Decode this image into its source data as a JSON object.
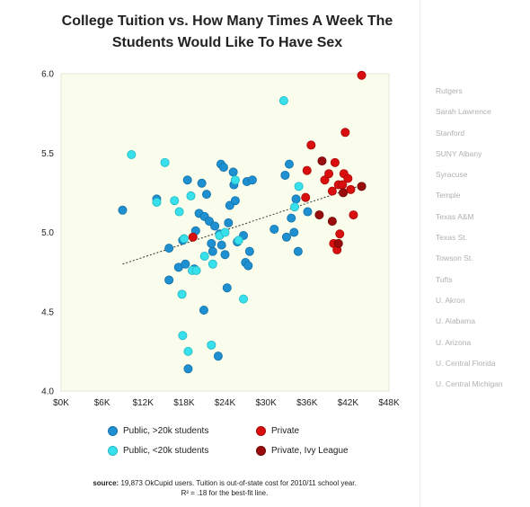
{
  "title_line1": "College Tuition vs. How Many Times A Week The",
  "title_line2": "Students Would Like To Have Sex",
  "schools": [
    "Rutgers",
    "Sarah Lawrence",
    "Stanford",
    "SUNY Albany",
    "Syracuse",
    "Temple",
    "Texas A&M",
    "Texas St.",
    "Towson St.",
    "Tufts",
    "U. Akron",
    "U. Alabama",
    "U. Arizona",
    "U. Central Florida",
    "U. Central Michigan"
  ],
  "legend": {
    "public_large": "Public, >20k students",
    "public_small": "Public, <20k students",
    "private": "Private",
    "private_ivy": "Private, Ivy League"
  },
  "source_label": "source:",
  "source_text": " 19,873 OkCupid users. Tuition is out-of-state cost for 2010/11 school year.",
  "r2_text": "R² = .18 for the best-fit line.",
  "colors": {
    "public_large": "#1e8fd0",
    "public_small": "#38e0ec",
    "private": "#d90e0e",
    "private_ivy": "#9a0c0c",
    "plot_bg": "#fafdeb",
    "trend": "#333333"
  },
  "chart_data": {
    "type": "scatter",
    "title": "College Tuition vs. How Many Times A Week The Students Would Like To Have Sex",
    "xlabel": "",
    "ylabel": "",
    "xlim": [
      0,
      48000
    ],
    "ylim": [
      4.0,
      6.0
    ],
    "x_ticks": [
      0,
      6000,
      12000,
      18000,
      24000,
      30000,
      36000,
      42000,
      48000
    ],
    "x_tick_labels": [
      "$0K",
      "$6K",
      "$12K",
      "$18K",
      "$24K",
      "$30K",
      "$36K",
      "$42K",
      "$48K"
    ],
    "y_ticks": [
      4.0,
      4.5,
      5.0,
      5.5,
      6.0
    ],
    "y_tick_labels": [
      "4.0",
      "4.5",
      "5.0",
      "5.5",
      "6.0"
    ],
    "grid": false,
    "trendline": {
      "x": [
        9000,
        43500
      ],
      "y": [
        4.8,
        5.29
      ]
    },
    "series": [
      {
        "name": "Public, >20k students",
        "color": "#1e8fd0",
        "points": [
          [
            9000,
            5.14
          ],
          [
            14000,
            5.21
          ],
          [
            15800,
            4.9
          ],
          [
            15800,
            4.7
          ],
          [
            17200,
            4.78
          ],
          [
            17800,
            4.95
          ],
          [
            18200,
            4.8
          ],
          [
            18500,
            5.33
          ],
          [
            18600,
            4.14
          ],
          [
            19500,
            4.77
          ],
          [
            19700,
            5.01
          ],
          [
            20200,
            5.12
          ],
          [
            20600,
            5.31
          ],
          [
            20900,
            4.51
          ],
          [
            21000,
            5.1
          ],
          [
            21300,
            5.24
          ],
          [
            21700,
            5.07
          ],
          [
            22000,
            4.93
          ],
          [
            22200,
            4.88
          ],
          [
            22500,
            5.04
          ],
          [
            23000,
            4.22
          ],
          [
            23200,
            4.99
          ],
          [
            23400,
            5.43
          ],
          [
            23500,
            4.92
          ],
          [
            23800,
            5.41
          ],
          [
            24000,
            4.86
          ],
          [
            24300,
            4.65
          ],
          [
            24500,
            5.06
          ],
          [
            24700,
            5.17
          ],
          [
            25200,
            5.38
          ],
          [
            25300,
            5.3
          ],
          [
            25500,
            5.2
          ],
          [
            25800,
            4.94
          ],
          [
            26700,
            4.98
          ],
          [
            27000,
            4.81
          ],
          [
            27200,
            5.32
          ],
          [
            27400,
            4.79
          ],
          [
            27600,
            4.88
          ],
          [
            28000,
            5.33
          ],
          [
            31200,
            5.02
          ],
          [
            32800,
            5.36
          ],
          [
            33000,
            4.97
          ],
          [
            33400,
            5.43
          ],
          [
            33700,
            5.09
          ],
          [
            34100,
            5.0
          ],
          [
            34400,
            5.21
          ],
          [
            34700,
            4.88
          ],
          [
            36100,
            5.13
          ]
        ]
      },
      {
        "name": "Public, <20k students",
        "color": "#38e0ec",
        "points": [
          [
            10300,
            5.49
          ],
          [
            14000,
            5.19
          ],
          [
            15200,
            5.44
          ],
          [
            16600,
            5.2
          ],
          [
            17300,
            5.13
          ],
          [
            17700,
            4.61
          ],
          [
            17800,
            4.35
          ],
          [
            18000,
            4.96
          ],
          [
            18600,
            4.25
          ],
          [
            19000,
            5.23
          ],
          [
            19200,
            4.76
          ],
          [
            19800,
            4.76
          ],
          [
            21000,
            4.85
          ],
          [
            22000,
            4.29
          ],
          [
            22200,
            4.8
          ],
          [
            23200,
            4.98
          ],
          [
            24000,
            5.0
          ],
          [
            25500,
            5.33
          ],
          [
            26000,
            4.95
          ],
          [
            26700,
            4.58
          ],
          [
            32600,
            5.83
          ],
          [
            34200,
            5.16
          ],
          [
            34800,
            5.29
          ]
        ]
      },
      {
        "name": "Private",
        "color": "#d90e0e",
        "points": [
          [
            19300,
            4.97
          ],
          [
            35800,
            5.22
          ],
          [
            36000,
            5.39
          ],
          [
            36600,
            5.55
          ],
          [
            38600,
            5.33
          ],
          [
            39200,
            5.37
          ],
          [
            39700,
            5.26
          ],
          [
            39900,
            4.93
          ],
          [
            40100,
            5.44
          ],
          [
            40400,
            4.89
          ],
          [
            40600,
            5.3
          ],
          [
            40800,
            4.99
          ],
          [
            41200,
            5.3
          ],
          [
            41400,
            5.37
          ],
          [
            41600,
            5.63
          ],
          [
            42000,
            5.34
          ],
          [
            42400,
            5.27
          ],
          [
            42800,
            5.11
          ],
          [
            44000,
            5.99
          ]
        ]
      },
      {
        "name": "Private, Ivy League",
        "color": "#9a0c0c",
        "points": [
          [
            37800,
            5.11
          ],
          [
            38200,
            5.45
          ],
          [
            39700,
            5.07
          ],
          [
            40600,
            4.93
          ],
          [
            41300,
            5.25
          ],
          [
            44000,
            5.29
          ]
        ]
      }
    ]
  }
}
